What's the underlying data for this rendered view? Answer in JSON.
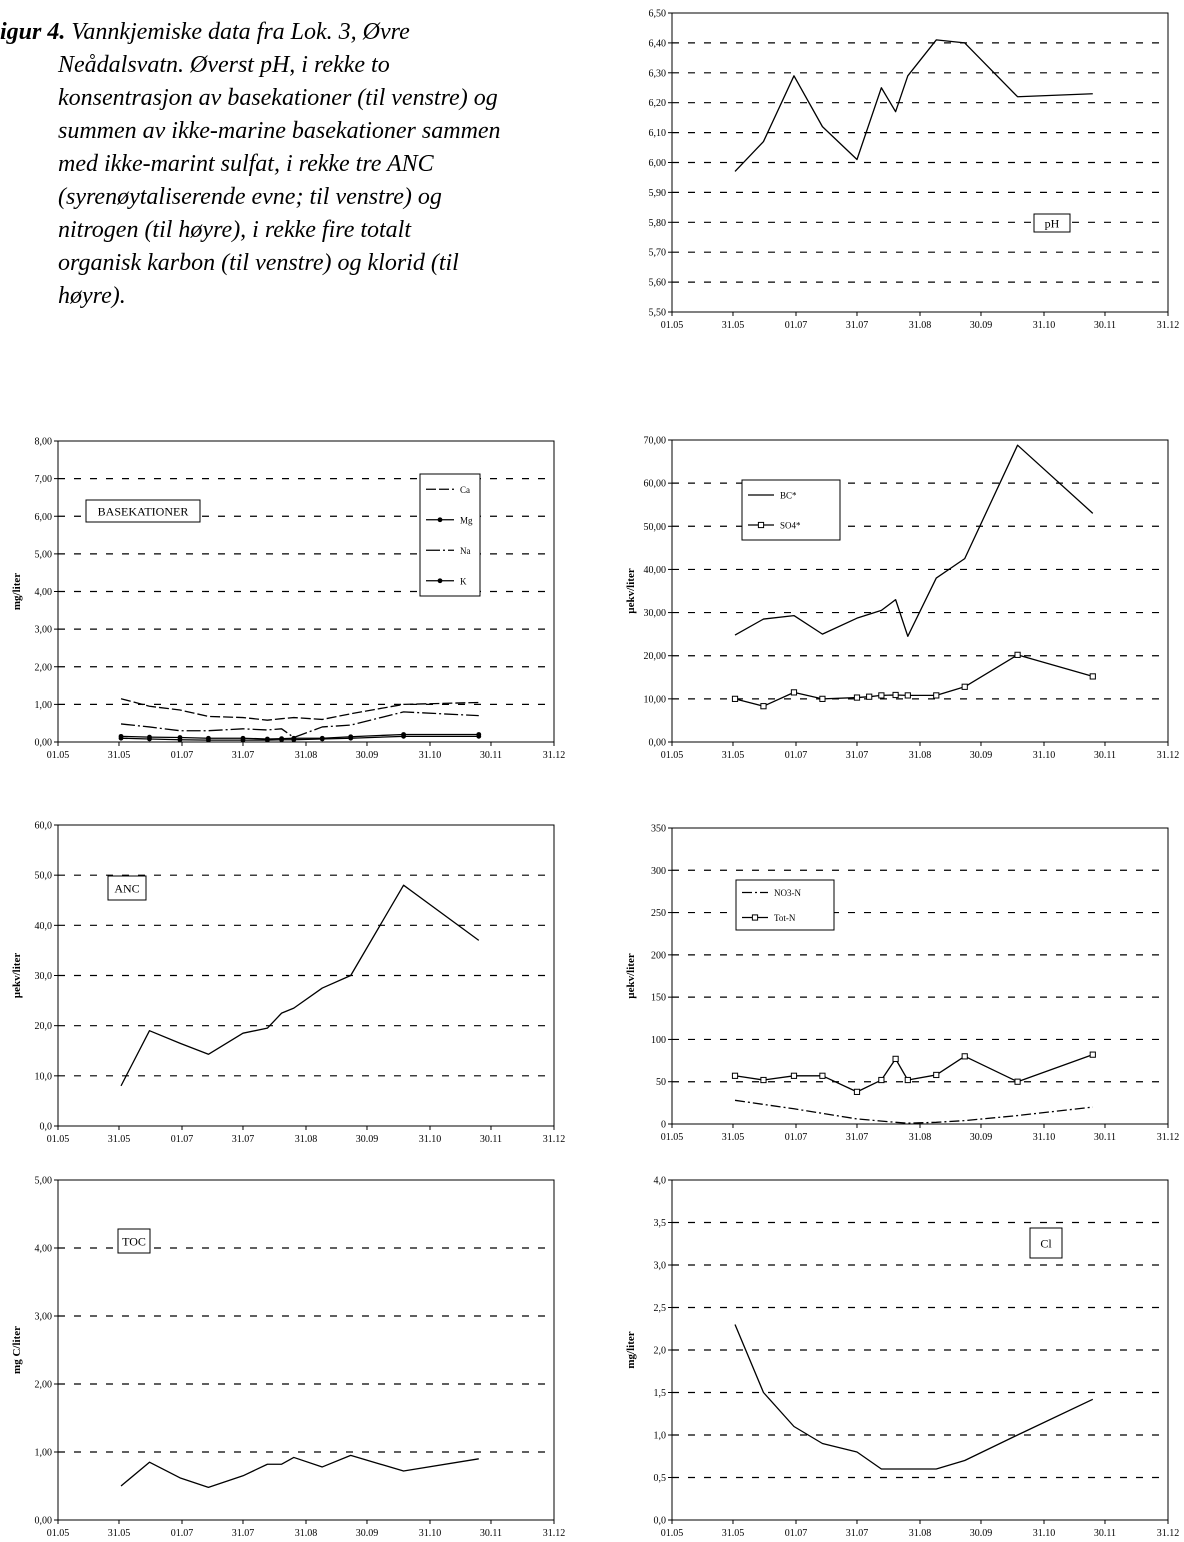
{
  "caption": {
    "label": "igur 4.",
    "lines": [
      "Vannkjemiske data fra Lok. 3, Øvre",
      "Neådalsvatn. Øverst pH, i rekke to",
      "konsentrasjon av basekationer (til venstre) og",
      "summen av ikke-marine basekationer sammen",
      "med ikke-marint sulfat, i rekke tre ANC",
      "(syrenøytaliserende evne; til venstre) og",
      "nitrogen (til høyre), i rekke fire totalt",
      "organisk karbon (til venstre) og klorid (til",
      "høyre)."
    ]
  },
  "x_axis": {
    "ticks": [
      "01.05",
      "31.05",
      "01.07",
      "31.07",
      "31.08",
      "30.09",
      "31.10",
      "30.11",
      "31.12"
    ],
    "tick_days": [
      0,
      30,
      61,
      91,
      122,
      152,
      183,
      213,
      244
    ]
  },
  "chart_data": [
    {
      "id": "ph",
      "type": "line",
      "ylabel": "",
      "ylim": [
        5.5,
        6.5
      ],
      "yticks": [
        "5,50",
        "5,60",
        "5,70",
        "5,80",
        "5,90",
        "6,00",
        "6,10",
        "6,20",
        "6,30",
        "6,40",
        "6,50"
      ],
      "grid": true,
      "label_box": {
        "text": "pH"
      },
      "series": [
        {
          "name": "",
          "marker": "none",
          "points": [
            [
              31,
              5.97
            ],
            [
              45,
              6.07
            ],
            [
              60,
              6.29
            ],
            [
              74,
              6.12
            ],
            [
              91,
              6.01
            ],
            [
              103,
              6.25
            ],
            [
              110,
              6.17
            ],
            [
              116,
              6.29
            ],
            [
              130,
              6.41
            ],
            [
              144,
              6.4
            ],
            [
              170,
              6.22
            ],
            [
              207,
              6.23
            ]
          ]
        }
      ]
    },
    {
      "id": "basekationer",
      "type": "line",
      "ylabel": "mg/liter",
      "ylim": [
        0,
        8
      ],
      "yticks": [
        "0,00",
        "1,00",
        "2,00",
        "3,00",
        "4,00",
        "5,00",
        "6,00",
        "7,00",
        "8,00"
      ],
      "grid": true,
      "label_box": {
        "text": "BASEKATIONER"
      },
      "legend": {
        "placement": "top-right"
      },
      "series": [
        {
          "name": "Ca",
          "marker": "none",
          "points": [
            [
              31,
              1.15
            ],
            [
              45,
              0.95
            ],
            [
              60,
              0.85
            ],
            [
              74,
              0.68
            ],
            [
              91,
              0.65
            ],
            [
              103,
              0.58
            ],
            [
              110,
              0.62
            ],
            [
              116,
              0.65
            ],
            [
              130,
              0.6
            ],
            [
              144,
              0.75
            ],
            [
              170,
              1.0
            ],
            [
              207,
              1.05
            ]
          ]
        },
        {
          "name": "Mg",
          "marker": "dot",
          "points": [
            [
              31,
              0.15
            ],
            [
              45,
              0.13
            ],
            [
              60,
              0.12
            ],
            [
              74,
              0.1
            ],
            [
              91,
              0.1
            ],
            [
              103,
              0.08
            ],
            [
              110,
              0.09
            ],
            [
              116,
              0.1
            ],
            [
              130,
              0.1
            ],
            [
              144,
              0.14
            ],
            [
              170,
              0.2
            ],
            [
              207,
              0.2
            ]
          ]
        },
        {
          "name": "Na",
          "marker": "none",
          "points": [
            [
              31,
              0.48
            ],
            [
              45,
              0.4
            ],
            [
              60,
              0.3
            ],
            [
              74,
              0.3
            ],
            [
              91,
              0.35
            ],
            [
              103,
              0.32
            ],
            [
              110,
              0.35
            ],
            [
              116,
              0.12
            ],
            [
              130,
              0.4
            ],
            [
              144,
              0.45
            ],
            [
              170,
              0.8
            ],
            [
              207,
              0.7
            ]
          ]
        },
        {
          "name": "K",
          "marker": "dot",
          "points": [
            [
              31,
              0.1
            ],
            [
              45,
              0.08
            ],
            [
              60,
              0.06
            ],
            [
              74,
              0.05
            ],
            [
              91,
              0.05
            ],
            [
              103,
              0.05
            ],
            [
              110,
              0.06
            ],
            [
              116,
              0.06
            ],
            [
              130,
              0.08
            ],
            [
              144,
              0.1
            ],
            [
              170,
              0.15
            ],
            [
              207,
              0.15
            ]
          ]
        }
      ]
    },
    {
      "id": "bc-so4",
      "type": "line",
      "ylabel": "µekv/liter",
      "ylim": [
        0,
        70
      ],
      "yticks": [
        "0,00",
        "10,00",
        "20,00",
        "30,00",
        "40,00",
        "50,00",
        "60,00",
        "70,00"
      ],
      "grid": true,
      "legend": {
        "placement": "top-left"
      },
      "series": [
        {
          "name": "BC*",
          "marker": "none",
          "points": [
            [
              31,
              24.8
            ],
            [
              45,
              28.5
            ],
            [
              60,
              29.3
            ],
            [
              74,
              25.0
            ],
            [
              91,
              28.7
            ],
            [
              103,
              30.5
            ],
            [
              110,
              33.0
            ],
            [
              116,
              24.5
            ],
            [
              130,
              38.0
            ],
            [
              144,
              42.5
            ],
            [
              170,
              68.8
            ],
            [
              207,
              53.0
            ]
          ]
        },
        {
          "name": "SO4*",
          "marker": "square",
          "points": [
            [
              31,
              10.0
            ],
            [
              45,
              8.3
            ],
            [
              60,
              11.5
            ],
            [
              74,
              10.0
            ],
            [
              91,
              10.3
            ],
            [
              97,
              10.5
            ],
            [
              103,
              10.8
            ],
            [
              110,
              10.9
            ],
            [
              116,
              10.8
            ],
            [
              130,
              10.8
            ],
            [
              144,
              12.8
            ],
            [
              170,
              20.2
            ],
            [
              207,
              15.2
            ]
          ]
        }
      ]
    },
    {
      "id": "anc",
      "type": "line",
      "ylabel": "µekv/liter",
      "ylim": [
        0,
        60
      ],
      "yticks": [
        "0,0",
        "10,0",
        "20,0",
        "30,0",
        "40,0",
        "50,0",
        "60,0"
      ],
      "grid": true,
      "label_box": {
        "text": "ANC"
      },
      "series": [
        {
          "name": "",
          "marker": "none",
          "points": [
            [
              31,
              8.0
            ],
            [
              45,
              19.0
            ],
            [
              60,
              16.5
            ],
            [
              74,
              14.3
            ],
            [
              91,
              18.5
            ],
            [
              103,
              19.5
            ],
            [
              110,
              22.5
            ],
            [
              116,
              23.5
            ],
            [
              130,
              27.5
            ],
            [
              144,
              30.0
            ],
            [
              170,
              48.0
            ],
            [
              207,
              37.0
            ]
          ]
        }
      ]
    },
    {
      "id": "nitrogen",
      "type": "line",
      "ylabel": "µekv/liter",
      "ylim": [
        0,
        350
      ],
      "yticks": [
        "0",
        "50",
        "100",
        "150",
        "200",
        "250",
        "300",
        "350"
      ],
      "grid": true,
      "legend": {
        "placement": "top-left"
      },
      "series": [
        {
          "name": "NO3-N",
          "marker": "none",
          "points": [
            [
              31,
              28
            ],
            [
              60,
              18
            ],
            [
              91,
              6
            ],
            [
              110,
              2
            ],
            [
              116,
              1
            ],
            [
              130,
              2
            ],
            [
              144,
              4
            ],
            [
              170,
              10
            ],
            [
              207,
              20
            ]
          ]
        },
        {
          "name": "Tot-N",
          "marker": "square",
          "points": [
            [
              31,
              57
            ],
            [
              45,
              52
            ],
            [
              60,
              57
            ],
            [
              74,
              57
            ],
            [
              91,
              38
            ],
            [
              103,
              52
            ],
            [
              110,
              77
            ],
            [
              116,
              52
            ],
            [
              130,
              58
            ],
            [
              144,
              80
            ],
            [
              170,
              50
            ],
            [
              207,
              82
            ]
          ]
        }
      ]
    },
    {
      "id": "toc",
      "type": "line",
      "ylabel": "mg C/liter",
      "ylim": [
        0,
        5
      ],
      "yticks": [
        "0,00",
        "1,00",
        "2,00",
        "3,00",
        "4,00",
        "5,00"
      ],
      "grid": true,
      "label_box": {
        "text": "TOC"
      },
      "series": [
        {
          "name": "",
          "marker": "none",
          "points": [
            [
              31,
              0.5
            ],
            [
              45,
              0.85
            ],
            [
              60,
              0.62
            ],
            [
              74,
              0.48
            ],
            [
              91,
              0.65
            ],
            [
              103,
              0.82
            ],
            [
              110,
              0.82
            ],
            [
              116,
              0.92
            ],
            [
              130,
              0.78
            ],
            [
              144,
              0.95
            ],
            [
              170,
              0.72
            ],
            [
              207,
              0.9
            ]
          ]
        }
      ]
    },
    {
      "id": "cl",
      "type": "line",
      "ylabel": "mg/liter",
      "ylim": [
        0,
        4
      ],
      "yticks": [
        "0,0",
        "0,5",
        "1,0",
        "1,5",
        "2,0",
        "2,5",
        "3,0",
        "3,5",
        "4,0"
      ],
      "grid": true,
      "label_box": {
        "text": "Cl"
      },
      "series": [
        {
          "name": "",
          "marker": "none",
          "points": [
            [
              31,
              2.3
            ],
            [
              45,
              1.5
            ],
            [
              60,
              1.1
            ],
            [
              74,
              0.9
            ],
            [
              91,
              0.8
            ],
            [
              103,
              0.6
            ],
            [
              116,
              0.6
            ],
            [
              130,
              0.6
            ],
            [
              144,
              0.7
            ],
            [
              170,
              1.0
            ],
            [
              207,
              1.42
            ]
          ]
        }
      ]
    }
  ]
}
